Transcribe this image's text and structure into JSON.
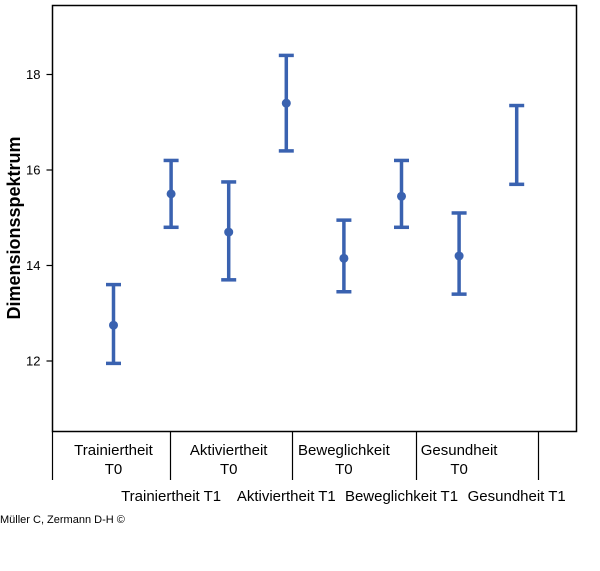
{
  "chart_data": {
    "type": "errorbar",
    "ylabel": "Dimensionsspektrum",
    "yticks": [
      12,
      14,
      16,
      18
    ],
    "ylim": [
      10.5,
      19.5
    ],
    "grid": false,
    "color": "#3a62b0",
    "categories": [
      {
        "lines": [
          "Trainiertheit",
          "T0"
        ],
        "row": 0
      },
      {
        "lines": [
          "Trainiertheit T1"
        ],
        "row": 1
      },
      {
        "lines": [
          "Aktiviertheit",
          "T0"
        ],
        "row": 0
      },
      {
        "lines": [
          "Aktiviertheit T1"
        ],
        "row": 1
      },
      {
        "lines": [
          "Beweglichkeit",
          "T0"
        ],
        "row": 0
      },
      {
        "lines": [
          "Beweglichkeit T1"
        ],
        "row": 1
      },
      {
        "lines": [
          "Gesundheit",
          "T0"
        ],
        "row": 0
      },
      {
        "lines": [
          "Gesundheit T1"
        ],
        "row": 1
      }
    ],
    "points": [
      {
        "mean": 12.75,
        "lower": 11.95,
        "upper": 13.6
      },
      {
        "mean": 15.5,
        "lower": 14.8,
        "upper": 16.2
      },
      {
        "mean": 14.7,
        "lower": 13.7,
        "upper": 15.75
      },
      {
        "mean": 17.4,
        "lower": 16.4,
        "upper": 18.4
      },
      {
        "mean": 14.15,
        "lower": 13.45,
        "upper": 14.95
      },
      {
        "mean": 15.45,
        "lower": 14.8,
        "upper": 16.2
      },
      {
        "mean": 14.2,
        "lower": 13.4,
        "upper": 15.1
      },
      {
        "mean": null,
        "lower": 15.7,
        "upper": 17.35
      }
    ]
  },
  "credit": "Müller C, Zermann D-H ©"
}
